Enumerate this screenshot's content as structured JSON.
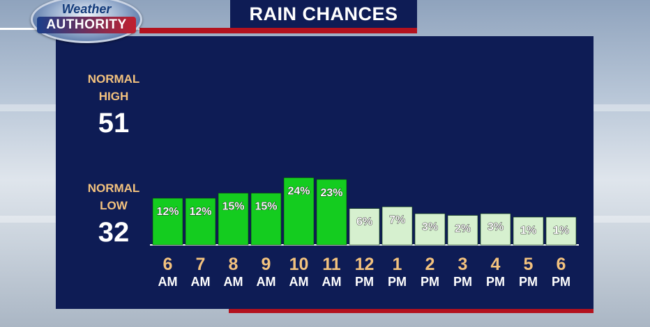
{
  "logo": {
    "line1": "Weather",
    "line2": "AUTHORITY"
  },
  "title": "RAIN CHANCES",
  "normals": {
    "high_label_1": "NORMAL",
    "high_label_2": "HIGH",
    "high_value": "51",
    "low_label_1": "NORMAL",
    "low_label_2": "LOW",
    "low_value": "32"
  },
  "colors": {
    "bright_green": "#14cc1f",
    "pale_green": "#d6f0cf",
    "panel": "#0e1c55",
    "hour_color": "#f3c27e"
  },
  "chart_data": {
    "type": "bar",
    "title": "RAIN CHANCES",
    "categories": [
      "6 AM",
      "7 AM",
      "8 AM",
      "9 AM",
      "10 AM",
      "11 AM",
      "12 PM",
      "1 PM",
      "2 PM",
      "3 PM",
      "4 PM",
      "5 PM",
      "6 PM"
    ],
    "hours": [
      "6",
      "7",
      "8",
      "9",
      "10",
      "11",
      "12",
      "1",
      "2",
      "3",
      "4",
      "5",
      "6"
    ],
    "periods": [
      "AM",
      "AM",
      "AM",
      "AM",
      "AM",
      "AM",
      "PM",
      "PM",
      "PM",
      "PM",
      "PM",
      "PM",
      "PM"
    ],
    "values": [
      12,
      12,
      15,
      15,
      24,
      23,
      6,
      7,
      3,
      2,
      3,
      1,
      1
    ],
    "labels": [
      "12%",
      "12%",
      "15%",
      "15%",
      "24%",
      "23%",
      "6%",
      "7%",
      "3%",
      "2%",
      "3%",
      "1%",
      "1%"
    ],
    "xlabel": "",
    "ylabel": "",
    "grid": false
  }
}
